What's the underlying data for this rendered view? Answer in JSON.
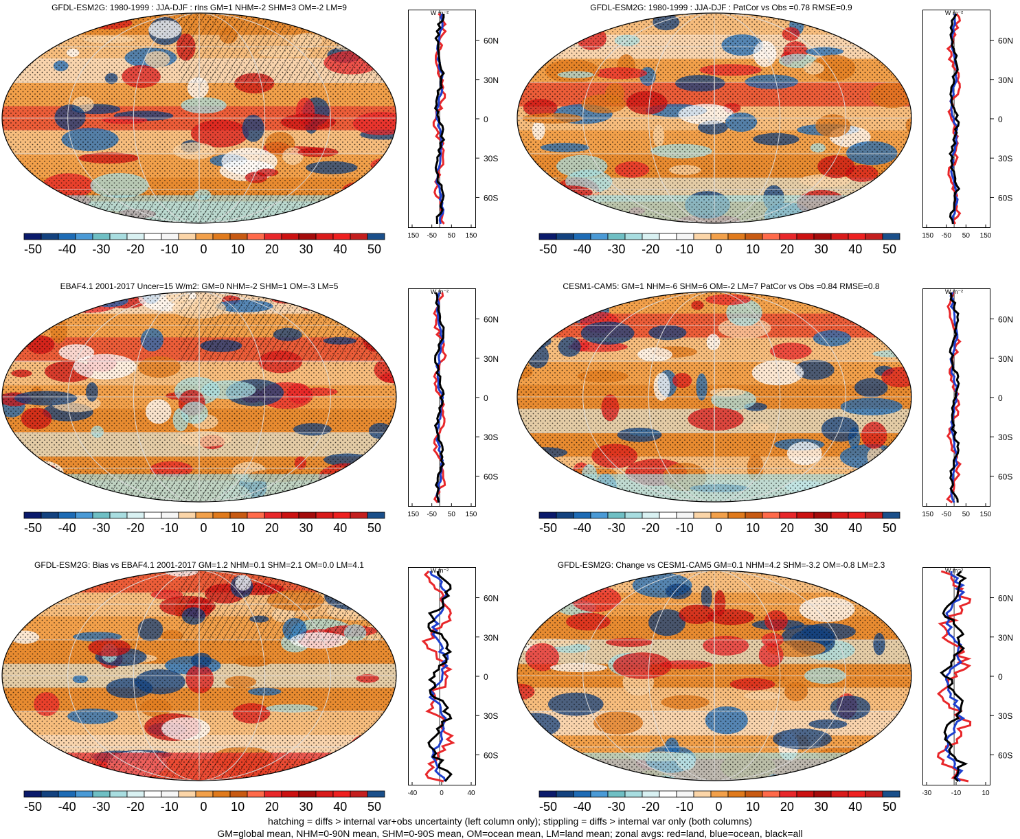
{
  "colorbar": {
    "colors": [
      "#0a1a6b",
      "#13427f",
      "#1d6bb5",
      "#4a9ad6",
      "#6fbfc4",
      "#a8dde0",
      "#d9f1f2",
      "#ffffff",
      "#f5f5f5",
      "#fbd5a8",
      "#f2a04a",
      "#e07a1c",
      "#c85a12",
      "#ff6a4a",
      "#e8272a",
      "#cc1111",
      "#a40b0b",
      "#d91a1a",
      "#ee2020",
      "#c41e1e",
      "#1a4f8a"
    ],
    "labels": [
      "-50",
      "-40",
      "-30",
      "-20",
      "-10",
      "0",
      "10",
      "20",
      "30",
      "40",
      "50"
    ]
  },
  "zonal_unit": "W m⁻²",
  "lat_labels": [
    "60N",
    "30N",
    "0",
    "30S",
    "60S"
  ],
  "panels": [
    {
      "id": "p1",
      "title": "GFDL-ESM2G: 1980-1999 : JJA-DJF : rlns GM=1 NHM=-2 SHM=3 OM=-2 LM=9",
      "x_ticks": [
        "-150",
        "-50",
        "50",
        "150"
      ],
      "hatch": true
    },
    {
      "id": "p2",
      "title": "GFDL-ESM2G: 1980-1999 : JJA-DJF : PatCor vs Obs =0.78 RMSE=0.9",
      "x_ticks": [
        "-150",
        "-50",
        "50",
        "150"
      ],
      "hatch": false
    },
    {
      "id": "p3",
      "title": "EBAF4.1 2001-2017 Uncer=15 W/m2: GM=0 NHM=-2 SHM=1 OM=-3 LM=5",
      "x_ticks": [
        "-150",
        "-50",
        "50",
        "150"
      ],
      "hatch": true
    },
    {
      "id": "p4",
      "title": "CESM1-CAM5: GM=1 NHM=-6 SHM=6 OM=-2 LM=7 PatCor vs Obs =0.84 RMSE=0.8",
      "x_ticks": [
        "-150",
        "-50",
        "50",
        "150"
      ],
      "hatch": false
    },
    {
      "id": "p5",
      "title": "GFDL-ESM2G: Bias vs EBAF4.1 2001-2017 GM=1.2 NHM=0.1 SHM=2.1 OM=0.0 LM=4.1",
      "x_ticks": [
        "-40",
        "0",
        "40"
      ],
      "hatch": true
    },
    {
      "id": "p6",
      "title": "GFDL-ESM2G: Change vs CESM1-CAM5 GM=0.1 NHM=4.2 SHM=-3.2 OM=-0.8 LM=2.3",
      "x_ticks": [
        "-30",
        "-10",
        "10"
      ],
      "hatch": false
    }
  ],
  "footer": {
    "line1": "hatching = diffs > internal var+obs uncertainty (left column only); stippling = diffs > internal var only (both columns)",
    "line2": "GM=global mean, NHM=0-90N mean, SHM=0-90S mean, OM=ocean mean, LM=land mean; zonal avgs: red=land, blue=ocean, black=all"
  }
}
